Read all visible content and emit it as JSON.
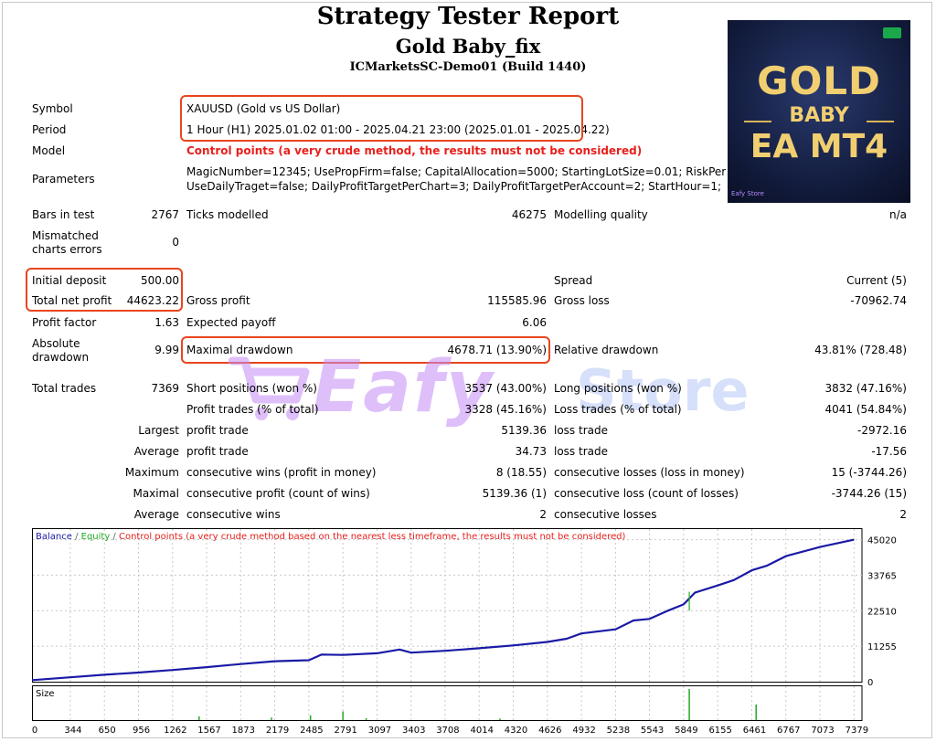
{
  "report": {
    "title": "Strategy Tester Report",
    "subtitle": "Gold Baby_fix",
    "build": "ICMarketsSC-Demo01 (Build 1440)"
  },
  "product_image": {
    "line1": "GOLD",
    "line2": "BABY",
    "line3": "EA MT4",
    "store": "Eafy Store"
  },
  "watermark": {
    "text": "Eafy",
    "store": "Store"
  },
  "settings": {
    "symbol_label": "Symbol",
    "symbol_value": "XAUUSD (Gold vs US Dollar)",
    "period_label": "Period",
    "period_value": "1 Hour (H1) 2025.01.02 01:00 - 2025.04.21 23:00 (2025.01.01 - 2025.04.22)",
    "model_label": "Model",
    "model_value": "Control points (a very crude method, the results must not be considered)",
    "parameters_label": "Parameters",
    "parameters_line1": "MagicNumber=12345; UsePropFirm=false; CapitalAllocation=5000; StartingLotSize=0.01; RiskPercent=0.1",
    "parameters_line2": "UseDailyTraget=false; DailyProfitTargetPerChart=3; DailyProfitTargetPerAccount=2; StartHour=1; EndHour"
  },
  "stats": {
    "bars_label": "Bars in test",
    "bars_value": "2767",
    "ticks_label": "Ticks modelled",
    "ticks_value": "46275",
    "quality_label": "Modelling quality",
    "quality_value": "n/a",
    "mismatch_label1": "Mismatched",
    "mismatch_label2": "charts errors",
    "mismatch_value": "0",
    "deposit_label": "Initial deposit",
    "deposit_value": "500.00",
    "spread_label": "Spread",
    "spread_value": "Current (5)",
    "net_label": "Total net profit",
    "net_value": "44623.22",
    "gross_profit_label": "Gross profit",
    "gross_profit_value": "115585.96",
    "gross_loss_label": "Gross loss",
    "gross_loss_value": "-70962.74",
    "pf_label": "Profit factor",
    "pf_value": "1.63",
    "ep_label": "Expected payoff",
    "ep_value": "6.06",
    "abs_dd_label1": "Absolute",
    "abs_dd_label2": "drawdown",
    "abs_dd_value": "9.99",
    "max_dd_label": "Maximal drawdown",
    "max_dd_value": "4678.71 (13.90%)",
    "rel_dd_label": "Relative drawdown",
    "rel_dd_value": "43.81% (728.48)",
    "trades_label": "Total trades",
    "trades_value": "7369",
    "short_label": "Short positions (won %)",
    "short_value": "3537 (43.00%)",
    "long_label": "Long positions (won %)",
    "long_value": "3832 (47.16%)",
    "profit_trades_label": "Profit trades (% of total)",
    "profit_trades_value": "3328 (45.16%)",
    "loss_trades_label": "Loss trades (% of total)",
    "loss_trades_value": "4041 (54.84%)",
    "largest_label": "Largest",
    "largest_profit_label": "profit trade",
    "largest_profit_value": "5139.36",
    "largest_loss_label": "loss trade",
    "largest_loss_value": "-2972.16",
    "average_label": "Average",
    "average_profit_label": "profit trade",
    "average_profit_value": "34.73",
    "average_loss_label": "loss trade",
    "average_loss_value": "-17.56",
    "maximum_label": "Maximum",
    "max_wins_label": "consecutive wins (profit in money)",
    "max_wins_value": "8 (18.55)",
    "max_losses_label": "consecutive losses (loss in money)",
    "max_losses_value": "15 (-3744.26)",
    "maximal_label": "Maximal",
    "maximal_profit_label": "consecutive profit (count of wins)",
    "maximal_profit_value": "5139.36 (1)",
    "maximal_loss_label": "consecutive loss (count of losses)",
    "maximal_loss_value": "-3744.26 (15)",
    "avg2_label": "Average",
    "avg_wins_label": "consecutive wins",
    "avg_wins_value": "2",
    "avg_losses_label": "consecutive losses",
    "avg_losses_value": "2"
  },
  "chart_data": {
    "type": "line",
    "legend": {
      "balance": "Balance",
      "sep1": " / ",
      "equity": "Equity",
      "sep2": " / ",
      "control": "Control points (a very crude method based on the nearest less timeframe, the results must not be considered)"
    },
    "colors": {
      "balance": "#1a1aa6",
      "equity": "#22aa22",
      "control": "#e8201c",
      "grid": "#c8c8c8"
    },
    "y_ticks": [
      "45020",
      "33765",
      "22510",
      "11255",
      "0"
    ],
    "y_tick_values": [
      45020,
      33765,
      22510,
      11255,
      0
    ],
    "ylim": [
      0,
      47500
    ],
    "x_ticks": [
      "0",
      "344",
      "650",
      "956",
      "1262",
      "1567",
      "1873",
      "2179",
      "2485",
      "2791",
      "3097",
      "3403",
      "3708",
      "4014",
      "4320",
      "4626",
      "4932",
      "5238",
      "5543",
      "5849",
      "6155",
      "6461",
      "6767",
      "7073",
      "7379"
    ],
    "xlim": [
      0,
      7450
    ],
    "size_label": "Size",
    "series": [
      {
        "name": "Balance",
        "x": [
          0,
          344,
          650,
          956,
          1262,
          1567,
          1873,
          2179,
          2485,
          2600,
          2791,
          3097,
          3300,
          3403,
          3708,
          4014,
          4320,
          4626,
          4800,
          4932,
          5238,
          5400,
          5543,
          5700,
          5849,
          5950,
          6155,
          6300,
          6461,
          6600,
          6767,
          7073,
          7379
        ],
        "values": [
          500,
          1400,
          2200,
          2900,
          3700,
          4600,
          5600,
          6500,
          6800,
          8600,
          8500,
          9000,
          10200,
          9200,
          9800,
          10600,
          11500,
          12600,
          13600,
          15300,
          16600,
          19400,
          19900,
          22400,
          24500,
          28200,
          30500,
          32200,
          35300,
          36800,
          39800,
          42700,
          45020
        ]
      }
    ],
    "size_bars": {
      "x": [
        1500,
        2150,
        2500,
        2791,
        3000,
        4200,
        5900,
        6500
      ],
      "values": [
        0.12,
        0.08,
        0.15,
        0.28,
        0.06,
        0.05,
        1.0,
        0.5
      ]
    }
  }
}
